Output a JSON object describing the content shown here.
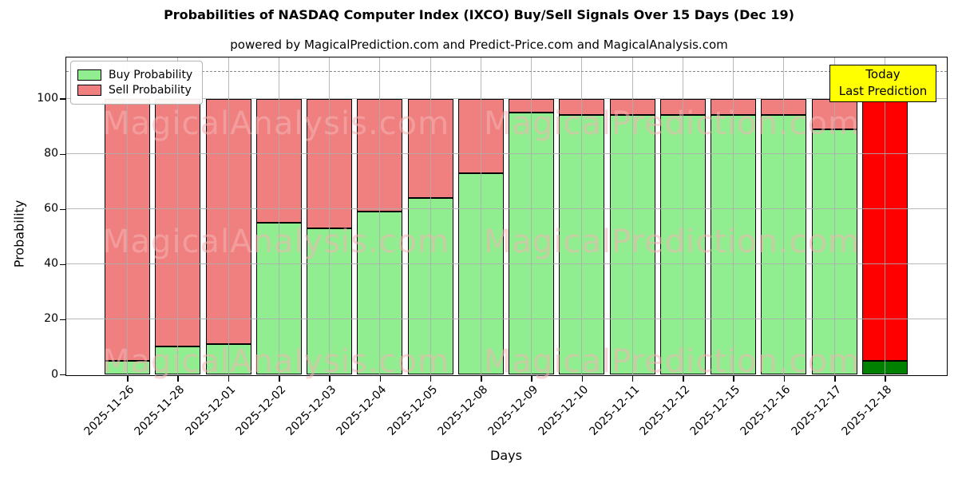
{
  "chart_data": {
    "type": "bar",
    "stacked": true,
    "title": "Probabilities of NASDAQ Computer Index (IXCO) Buy/Sell Signals Over 15 Days (Dec 19)",
    "subtitle": "powered by MagicalPrediction.com and Predict-Price.com and MagicalAnalysis.com",
    "xlabel": "Days",
    "ylabel": "Probability",
    "ylim": [
      0,
      115
    ],
    "yticks": [
      0,
      20,
      40,
      60,
      80,
      100
    ],
    "dashed_line_y": 110,
    "grid": true,
    "legend_position": "upper left",
    "categories": [
      "2025-11-26",
      "2025-11-28",
      "2025-12-01",
      "2025-12-02",
      "2025-12-03",
      "2025-12-04",
      "2025-12-05",
      "2025-12-08",
      "2025-12-09",
      "2025-12-10",
      "2025-12-11",
      "2025-12-12",
      "2025-12-15",
      "2025-12-16",
      "2025-12-17",
      "2025-12-18"
    ],
    "series": [
      {
        "name": "Buy Probability",
        "color": "#90EE90",
        "values": [
          5,
          10,
          11,
          55,
          53,
          59,
          64,
          73,
          95,
          94,
          94,
          94,
          94,
          94,
          89,
          5
        ]
      },
      {
        "name": "Sell Probability",
        "color": "#F08080",
        "values": [
          95,
          90,
          89,
          45,
          47,
          41,
          36,
          27,
          5,
          6,
          6,
          6,
          6,
          6,
          11,
          95
        ]
      }
    ],
    "today_bar": {
      "index": 15,
      "buy_color": "#008000",
      "sell_color": "#FF0000"
    },
    "annotation": {
      "line1": "Today",
      "line2": "Last Prediction",
      "bg_color": "#FFFF00"
    },
    "watermarks": [
      "MagicalAnalysis.com",
      "MagicalPrediction.com"
    ],
    "edge_color": "#000000",
    "grid_color": "#adadad"
  }
}
